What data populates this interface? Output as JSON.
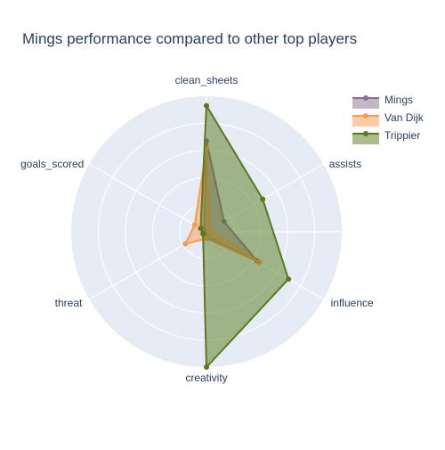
{
  "chart_data": {
    "type": "radar",
    "title": "Mings performance compared to other top players",
    "axes": [
      "clean_sheets",
      "assists",
      "influence",
      "creativity",
      "threat",
      "goals_scored"
    ],
    "radial_range": [
      0,
      1
    ],
    "grid": true,
    "legend_position": "top-right",
    "series": [
      {
        "name": "Mings",
        "color": "#8c6d8c",
        "values": [
          0.67,
          0.15,
          0.43,
          0.04,
          0.02,
          0.02
        ]
      },
      {
        "name": "Van Dijk",
        "color": "#f89a4f",
        "values": [
          0.62,
          0.03,
          0.45,
          0.05,
          0.18,
          0.1
        ]
      },
      {
        "name": "Trippier",
        "color": "#5a7a1a",
        "values": [
          0.93,
          0.48,
          0.7,
          1.0,
          0.03,
          0.05
        ]
      }
    ]
  }
}
